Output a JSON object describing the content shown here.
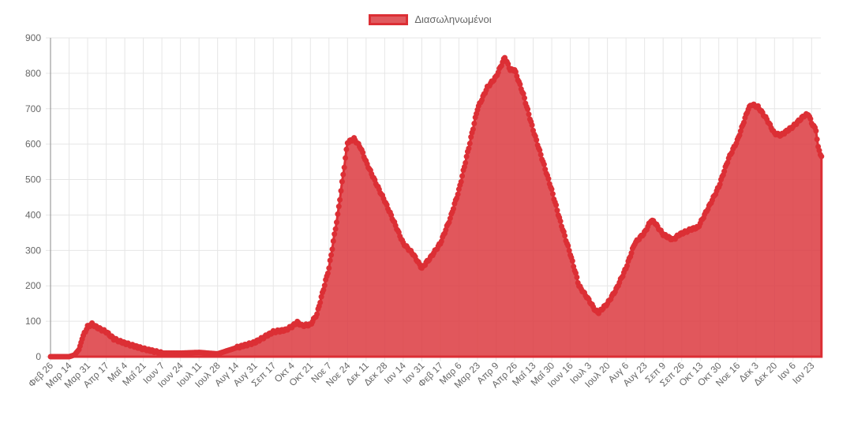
{
  "legend": {
    "label": "Διασωληνωμένοι"
  },
  "colors": {
    "line": "#dc2f35",
    "fill": "#dc3a40",
    "fill_opacity": 0.85,
    "grid": "#e6e6e6",
    "axis": "#8a8a8a",
    "tick_text": "#666666"
  },
  "chart_data": {
    "type": "area",
    "title": "",
    "xlabel": "",
    "ylabel": "",
    "ylim": [
      0,
      900
    ],
    "yticks": [
      0,
      100,
      200,
      300,
      400,
      500,
      600,
      700,
      800,
      900
    ],
    "grid": true,
    "legend_position": "top",
    "legend": [
      "Διασωληνωμένοι"
    ],
    "categories": [
      "Φεβ 26",
      "Μαρ 14",
      "Μαρ 31",
      "Απρ 17",
      "Μαΐ 4",
      "Μαΐ 21",
      "Ιουν 7",
      "Ιουν 24",
      "Ιουλ 11",
      "Ιουλ 28",
      "Αυγ 14",
      "Αυγ 31",
      "Σεπ 17",
      "Οκτ 4",
      "Οκτ 21",
      "Νοε 7",
      "Νοε 24",
      "Δεκ 11",
      "Δεκ 28",
      "Ιαν 14",
      "Ιαν 31",
      "Φεβ 17",
      "Μαρ 6",
      "Μαρ 23",
      "Απρ 9",
      "Απρ 26",
      "Μαΐ 13",
      "Μαΐ 30",
      "Ιουν 16",
      "Ιουλ 3",
      "Ιουλ 20",
      "Αυγ 6",
      "Αυγ 23",
      "Σεπ 9",
      "Σεπ 26",
      "Οκτ 13",
      "Οκτ 30",
      "Νοε 16",
      "Δεκ 3",
      "Δεκ 20",
      "Ιαν 6",
      "Ιαν 23"
    ],
    "label_step_days": 17,
    "total_days": 706,
    "series": [
      {
        "name": "Διασωληνωμένοι",
        "anchors_day_value": [
          [
            0,
            0
          ],
          [
            17,
            0
          ],
          [
            22,
            5
          ],
          [
            26,
            20
          ],
          [
            30,
            60
          ],
          [
            34,
            85
          ],
          [
            38,
            92
          ],
          [
            44,
            80
          ],
          [
            51,
            70
          ],
          [
            58,
            50
          ],
          [
            68,
            38
          ],
          [
            85,
            22
          ],
          [
            102,
            10
          ],
          [
            119,
            10
          ],
          [
            136,
            12
          ],
          [
            153,
            8
          ],
          [
            170,
            25
          ],
          [
            187,
            40
          ],
          [
            204,
            70
          ],
          [
            215,
            75
          ],
          [
            221,
            85
          ],
          [
            226,
            97
          ],
          [
            230,
            88
          ],
          [
            238,
            90
          ],
          [
            244,
            120
          ],
          [
            255,
            250
          ],
          [
            263,
            400
          ],
          [
            270,
            560
          ],
          [
            272,
            605
          ],
          [
            278,
            615
          ],
          [
            284,
            590
          ],
          [
            289,
            550
          ],
          [
            298,
            490
          ],
          [
            306,
            440
          ],
          [
            316,
            370
          ],
          [
            323,
            320
          ],
          [
            332,
            290
          ],
          [
            340,
            250
          ],
          [
            348,
            280
          ],
          [
            357,
            320
          ],
          [
            366,
            390
          ],
          [
            374,
            470
          ],
          [
            383,
            590
          ],
          [
            391,
            700
          ],
          [
            400,
            760
          ],
          [
            408,
            790
          ],
          [
            416,
            845
          ],
          [
            421,
            810
          ],
          [
            425,
            810
          ],
          [
            433,
            740
          ],
          [
            442,
            640
          ],
          [
            450,
            560
          ],
          [
            459,
            470
          ],
          [
            467,
            380
          ],
          [
            476,
            290
          ],
          [
            484,
            200
          ],
          [
            493,
            160
          ],
          [
            499,
            130
          ],
          [
            502,
            125
          ],
          [
            510,
            150
          ],
          [
            518,
            190
          ],
          [
            527,
            250
          ],
          [
            535,
            320
          ],
          [
            544,
            350
          ],
          [
            550,
            385
          ],
          [
            553,
            380
          ],
          [
            561,
            345
          ],
          [
            570,
            330
          ],
          [
            576,
            345
          ],
          [
            587,
            360
          ],
          [
            593,
            365
          ],
          [
            604,
            430
          ],
          [
            612,
            480
          ],
          [
            621,
            560
          ],
          [
            629,
            610
          ],
          [
            639,
            700
          ],
          [
            642,
            712
          ],
          [
            648,
            705
          ],
          [
            656,
            670
          ],
          [
            663,
            630
          ],
          [
            669,
            625
          ],
          [
            680,
            650
          ],
          [
            690,
            680
          ],
          [
            694,
            685
          ],
          [
            697,
            660
          ],
          [
            701,
            640
          ],
          [
            703,
            590
          ],
          [
            706,
            565
          ]
        ]
      }
    ]
  }
}
